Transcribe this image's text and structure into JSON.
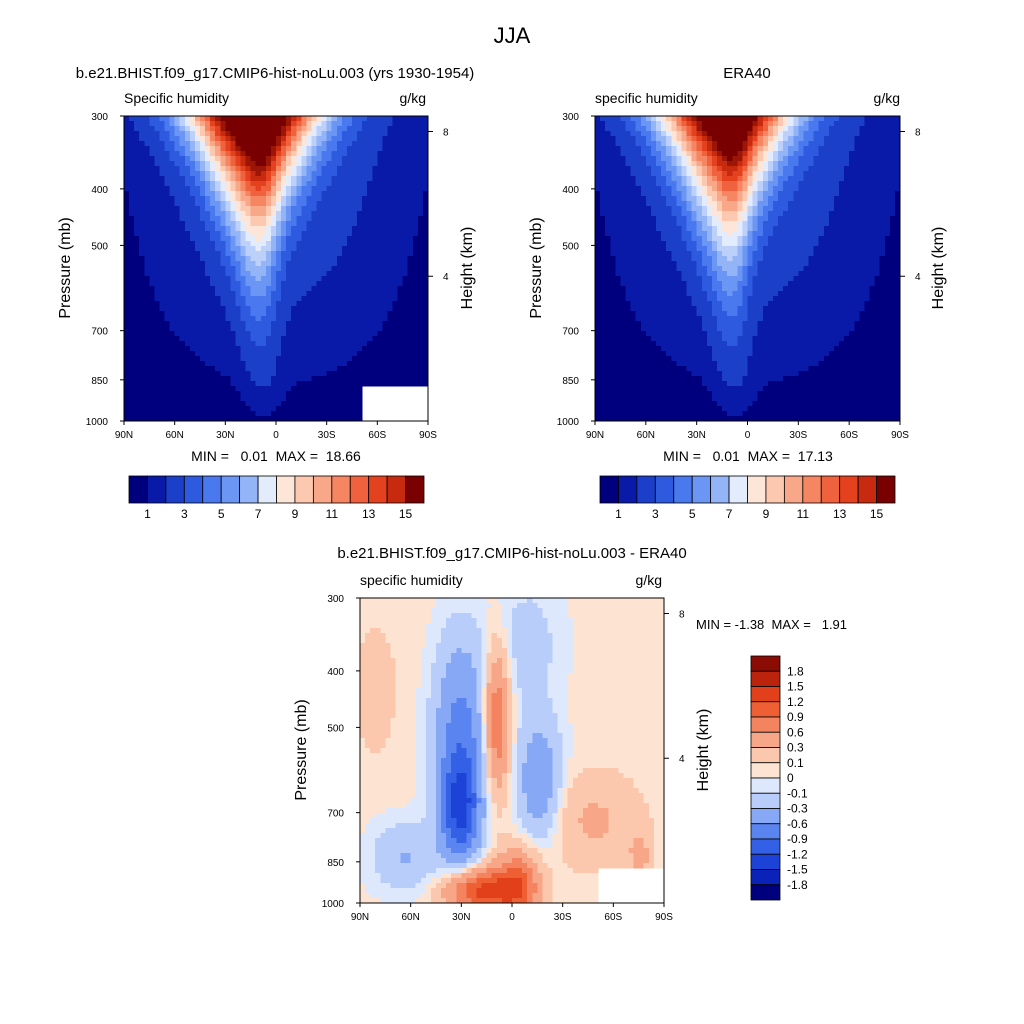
{
  "figure": {
    "title": "JJA"
  },
  "palette": {
    "seq": [
      "#00007f",
      "#0a1aa8",
      "#1b3fc8",
      "#2e5ae0",
      "#4a78ee",
      "#6b96f4",
      "#93b4f7",
      "#bcd0fa",
      "#e2ecfd",
      "#fde5d8",
      "#fcc8b0",
      "#f8a888",
      "#f68562",
      "#f0623e",
      "#e4411f",
      "#c82a0f",
      "#9c1607",
      "#780000"
    ],
    "seq_cbar": [
      "#00007f",
      "#0a1aa8",
      "#1b3fc8",
      "#2e5ae0",
      "#4a78ee",
      "#6b96f4",
      "#93b4f7",
      "#e2ecfd",
      "#fde5d8",
      "#fcc8b0",
      "#f8a888",
      "#f68562",
      "#f0623e",
      "#e4411f",
      "#c82a0f",
      "#780000"
    ],
    "diff": [
      "#00007f",
      "#0a22b8",
      "#1c42d8",
      "#3460e6",
      "#5a84ef",
      "#86a8f5",
      "#b8cdf9",
      "#dde8fd",
      "#fde3d2",
      "#fbc7ad",
      "#f8a688",
      "#f4845f",
      "#ee5f34",
      "#e1401b",
      "#bb230d",
      "#8a0c04"
    ]
  },
  "chart_data": [
    {
      "type": "heatmap",
      "title": "b.e21.BHIST.f09_g17.CMIP6-hist-noLu.003 (yrs 1930-1954)",
      "subtitle_left": "Specific humidity",
      "subtitle_right": "g/kg",
      "ylabel": "Pressure (mb)",
      "ylabel_right": "Height (km)",
      "x_ticks": [
        "90N",
        "60N",
        "30N",
        "0",
        "30S",
        "60S",
        "90S"
      ],
      "y_ticks": [
        300,
        400,
        500,
        700,
        850,
        1000
      ],
      "y_ticks_right": [
        8,
        4
      ],
      "ylim": [
        1000,
        300
      ],
      "xlim": [
        90,
        -90
      ],
      "stats": "MIN =   0.01  MAX =  18.66",
      "peak": 18.66,
      "missing_corner": true,
      "colorbar_labels": [
        "1",
        "3",
        "5",
        "7",
        "9",
        "11",
        "13",
        "15"
      ]
    },
    {
      "type": "heatmap",
      "title": "ERA40",
      "subtitle_left": "specific humidity",
      "subtitle_right": "g/kg",
      "ylabel": "Pressure (mb)",
      "ylabel_right": "Height (km)",
      "x_ticks": [
        "90N",
        "60N",
        "30N",
        "0",
        "30S",
        "60S",
        "90S"
      ],
      "y_ticks": [
        300,
        400,
        500,
        700,
        850,
        1000
      ],
      "y_ticks_right": [
        8,
        4
      ],
      "ylim": [
        1000,
        300
      ],
      "xlim": [
        90,
        -90
      ],
      "stats": "MIN =   0.01  MAX =  17.13",
      "peak": 17.13,
      "missing_corner": false,
      "colorbar_labels": [
        "1",
        "3",
        "5",
        "7",
        "9",
        "11",
        "13",
        "15"
      ]
    },
    {
      "type": "heatmap",
      "title": "b.e21.BHIST.f09_g17.CMIP6-hist-noLu.003 - ERA40",
      "subtitle_left": "specific humidity",
      "subtitle_right": "g/kg",
      "ylabel": "Pressure (mb)",
      "ylabel_right": "Height (km)",
      "x_ticks": [
        "90N",
        "60N",
        "30N",
        "0",
        "30S",
        "60S",
        "90S"
      ],
      "y_ticks": [
        300,
        400,
        500,
        700,
        850,
        1000
      ],
      "y_ticks_right": [
        8,
        4
      ],
      "ylim": [
        1000,
        300
      ],
      "xlim": [
        90,
        -90
      ],
      "stats": "MIN = -1.38  MAX =   1.91",
      "min": -1.38,
      "max": 1.91,
      "missing_corner": true,
      "levels": [
        -1.8,
        -1.5,
        -1.2,
        -0.9,
        -0.6,
        -0.3,
        -0.1,
        0,
        0.1,
        0.3,
        0.6,
        0.9,
        1.2,
        1.5,
        1.8
      ],
      "colorbar_labels": [
        "1.8",
        "1.5",
        "1.2",
        "0.9",
        "0.6",
        "0.3",
        "0.1",
        "0",
        "-0.1",
        "-0.3",
        "-0.6",
        "-0.9",
        "-1.2",
        "-1.5",
        "-1.8"
      ]
    }
  ]
}
